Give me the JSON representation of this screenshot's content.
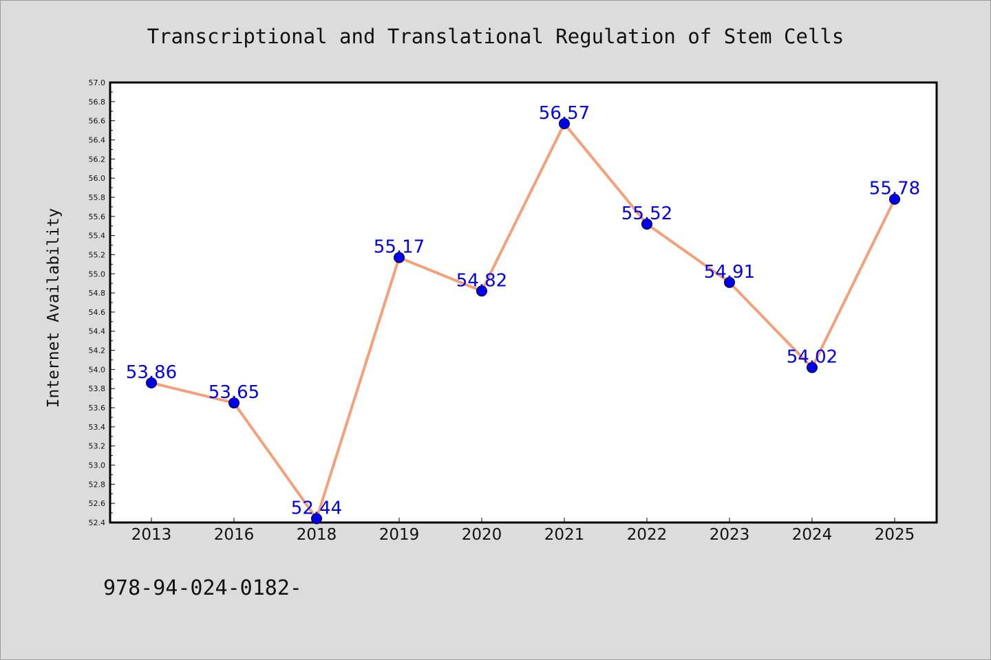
{
  "chart_data": {
    "type": "line",
    "title": "Transcriptional and Translational Regulation of Stem Cells",
    "ylabel": "Internet Availability",
    "xlabel": "",
    "categories": [
      "2013",
      "2016",
      "2018",
      "2019",
      "2020",
      "2021",
      "2022",
      "2023",
      "2024",
      "2025"
    ],
    "values": [
      53.86,
      53.65,
      52.44,
      55.17,
      54.82,
      56.57,
      55.52,
      54.91,
      54.02,
      55.78
    ],
    "data_labels": [
      "53.86",
      "53.65",
      "52.44",
      "55.17",
      "54.82",
      "56.57",
      "55.52",
      "54.91",
      "54.02",
      "55.78"
    ],
    "ylim": [
      52.4,
      57.0
    ],
    "yticks": [
      "52.4",
      "52.6",
      "52.8",
      "53.0",
      "53.2",
      "53.4",
      "53.6",
      "53.8",
      "54.0",
      "54.2",
      "54.4",
      "54.6",
      "54.8",
      "55.0",
      "55.2",
      "55.4",
      "55.6",
      "55.8",
      "56.0",
      "56.2",
      "56.4",
      "56.6",
      "56.8",
      "57.0"
    ],
    "grid": false,
    "legend": "none",
    "line_color": "#f4a07a",
    "marker_color": "#0000ee",
    "label_color": "#0000ee"
  },
  "footer_code": "978-94-024-0182-"
}
